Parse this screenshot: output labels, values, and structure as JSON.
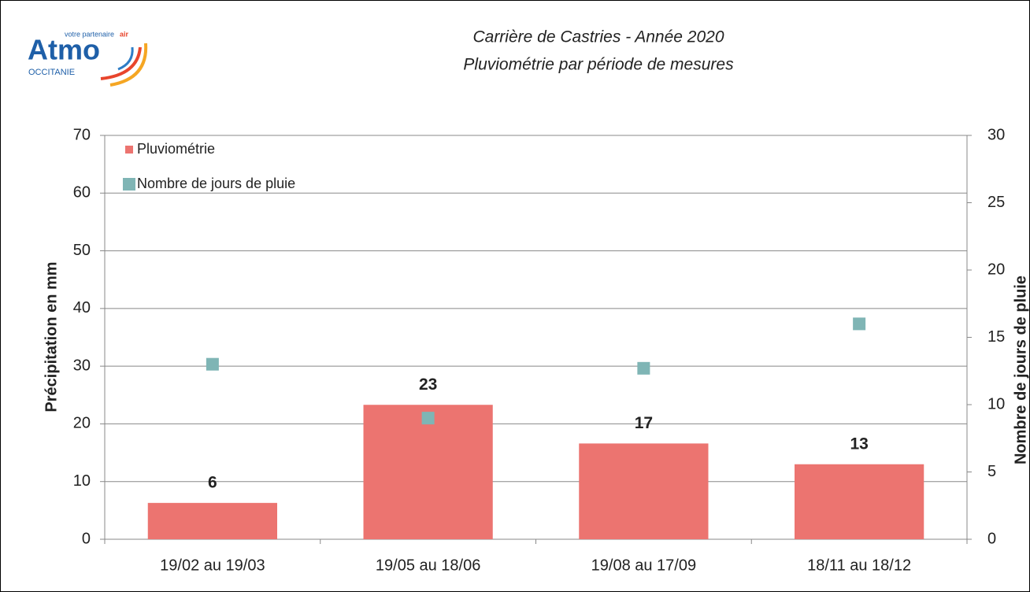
{
  "logo": {
    "name": "Atmo",
    "tagline": "votre partenaire",
    "tagline_accent": "air",
    "region": "OCCITANIE"
  },
  "chart_data": {
    "type": "bar",
    "title": "Carrière de Castries - Année 2020",
    "subtitle": "Pluviométrie par période de mesures",
    "y_label": "Précipitation en mm",
    "y2_label": "Nombre de jours de pluie",
    "categories": [
      "19/02 au 19/03",
      "19/05 au 18/06",
      "19/08 au 17/09",
      "18/11 au 18/12"
    ],
    "series": [
      {
        "name": "Pluviométrie",
        "type": "bar",
        "color": "#ec7470",
        "values": [
          6.3,
          23.3,
          16.6,
          13
        ],
        "value_labels": [
          "6",
          "23",
          "17",
          "13"
        ]
      },
      {
        "name": "Nombre de jours de pluie",
        "type": "scatter",
        "color": "#7fb5b5",
        "axis": "y2",
        "values": [
          13,
          9,
          12.7,
          16
        ]
      }
    ],
    "ylim": [
      0,
      70
    ],
    "yticks": [
      0,
      10,
      20,
      30,
      40,
      50,
      60,
      70
    ],
    "y2lim": [
      0,
      30
    ],
    "y2ticks": [
      0,
      5,
      10,
      15,
      20,
      25,
      30
    ],
    "grid": true,
    "legend": "top-left"
  }
}
